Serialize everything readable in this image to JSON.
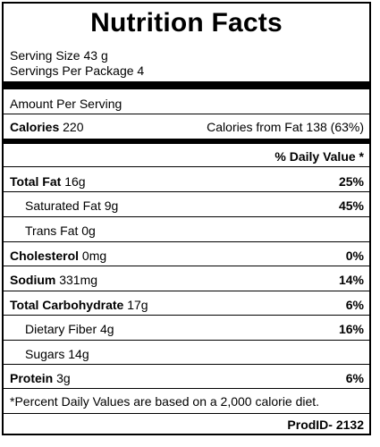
{
  "title": "Nutrition Facts",
  "serving_size": "Serving Size 43 g",
  "servings_per_package": "Servings Per Package 4",
  "amount_per_serving": "Amount Per Serving",
  "calories": {
    "label": "Calories",
    "value": "220"
  },
  "calories_from_fat": "Calories from Fat 138 (63%)",
  "daily_value_header": "% Daily Value *",
  "nutrients": {
    "total_fat": {
      "label": "Total Fat",
      "amount": "16g",
      "dv": "25%"
    },
    "saturated_fat": {
      "label": "Saturated Fat 9g",
      "dv": "45%"
    },
    "trans_fat": {
      "label": "Trans Fat 0g"
    },
    "cholesterol": {
      "label": "Cholesterol",
      "amount": "0mg",
      "dv": "0%"
    },
    "sodium": {
      "label": "Sodium",
      "amount": "331mg",
      "dv": "14%"
    },
    "total_carbohydrate": {
      "label": "Total Carbohydrate",
      "amount": "17g",
      "dv": "6%"
    },
    "dietary_fiber": {
      "label": "Dietary Fiber 4g",
      "dv": "16%"
    },
    "sugars": {
      "label": "Sugars 14g"
    },
    "protein": {
      "label": "Protein",
      "amount": "3g",
      "dv": "6%"
    }
  },
  "footnote": "*Percent Daily Values are based on a 2,000 calorie diet.",
  "product_id": "ProdID- 2132"
}
